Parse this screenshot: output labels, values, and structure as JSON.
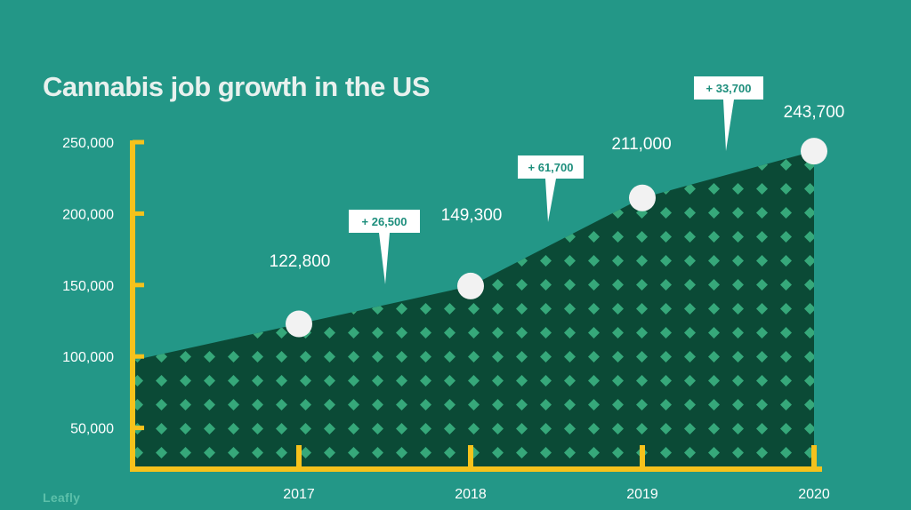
{
  "title": "Cannabis job growth in the US",
  "brand": "Leafly",
  "colors": {
    "background": "#239787",
    "area_fill": "#0b4a36",
    "pattern": "#36a87a",
    "axis": "#f6c21c",
    "points": "#f2f2f2",
    "text": "#ffffff",
    "callout_text": "#1d8e7c"
  },
  "chart_data": {
    "type": "area",
    "title": "Cannabis job growth in the US",
    "categories": [
      "2017",
      "2018",
      "2019",
      "2020"
    ],
    "values": [
      122800,
      149300,
      211000,
      243700
    ],
    "point_labels": [
      "122,800",
      "149,300",
      "211,000",
      "243,700"
    ],
    "growth_callouts": [
      "+ 26,500",
      "+ 61,700",
      "+ 33,700"
    ],
    "ylim": [
      0,
      250000
    ],
    "yticks": [
      50000,
      100000,
      150000,
      200000,
      250000
    ],
    "ytick_labels": [
      "50,000",
      "100,000",
      "150,000",
      "200,000",
      "250,000"
    ],
    "xlabel": "",
    "ylabel": "",
    "grid": false,
    "legend": "none"
  }
}
